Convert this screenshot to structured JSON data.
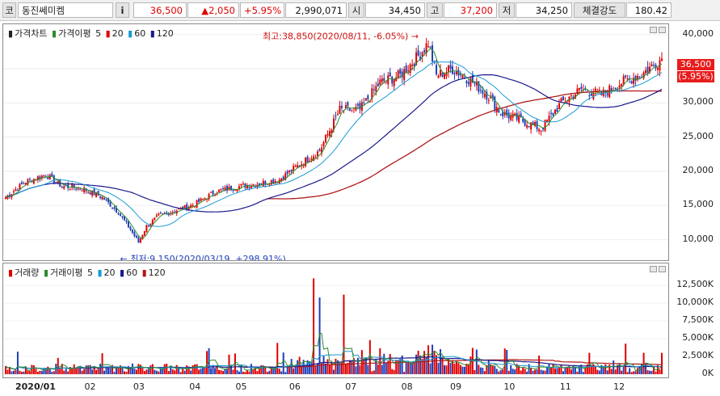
{
  "toolbar": {
    "market_code": "코",
    "stock_name": "동진쎄미켐",
    "info_button": "i",
    "price": "36,500",
    "change": "▲2,050",
    "change_pct": "+5.95%",
    "volume": "2,990,071",
    "open_label": "시",
    "open_value": "34,450",
    "high_label": "고",
    "high_value": "37,200",
    "low_label": "저",
    "low_value": "34,250",
    "strength_label": "체결강도",
    "strength_value": "180.42"
  },
  "price_pane": {
    "legend": {
      "title": "가격차트",
      "ma_title": "가격이평",
      "ma5": "5",
      "ma20": "20",
      "ma60": "60",
      "ma120": "120"
    },
    "annotations": {
      "high": "최고:38,850(2020/08/11, -6.05%)",
      "low": "최저:9,150(2020/03/19, +298.91%)"
    },
    "current_price": "36,500",
    "current_pct": "(5.95%)"
  },
  "volume_pane": {
    "legend": {
      "title": "거래량",
      "ma_title": "거래이평",
      "ma5": "5",
      "ma20": "20",
      "ma60": "60",
      "ma120": "120"
    }
  },
  "colors": {
    "up": "#e00000",
    "down": "#1f3fb8",
    "ma5": "#2e8b2e",
    "ma20": "#1a9ad6",
    "ma60": "#1a1a8c",
    "ma120": "#b01818"
  },
  "chart_data": [
    {
      "type": "candlestick",
      "title": "가격차트",
      "x_tick_labels": [
        "2020/01",
        "02",
        "03",
        "04",
        "05",
        "06",
        "07",
        "08",
        "09",
        "10",
        "11",
        "12"
      ],
      "y_tick_labels": [
        "10,000",
        "15,000",
        "20,000",
        "25,000",
        "30,000",
        "35,000",
        "40,000"
      ],
      "ylim": [
        7000,
        41500
      ],
      "high": {
        "value": 38850,
        "date": "2020/08/11"
      },
      "low": {
        "value": 9150,
        "date": "2020/03/19"
      },
      "last": 36500,
      "close_path": [
        [
          0,
          16200
        ],
        [
          10,
          18500
        ],
        [
          20,
          19500
        ],
        [
          28,
          17800
        ],
        [
          38,
          17500
        ],
        [
          48,
          16200
        ],
        [
          56,
          14000
        ],
        [
          62,
          11500
        ],
        [
          66,
          9600
        ],
        [
          70,
          12000
        ],
        [
          76,
          13500
        ],
        [
          84,
          14200
        ],
        [
          94,
          15200
        ],
        [
          104,
          17000
        ],
        [
          116,
          17800
        ],
        [
          126,
          18200
        ],
        [
          136,
          18800
        ],
        [
          146,
          21000
        ],
        [
          156,
          23000
        ],
        [
          166,
          29000
        ],
        [
          176,
          29000
        ],
        [
          186,
          33000
        ],
        [
          196,
          34000
        ],
        [
          206,
          37200
        ],
        [
          210,
          38800
        ],
        [
          214,
          34000
        ],
        [
          222,
          35000
        ],
        [
          230,
          33500
        ],
        [
          240,
          31000
        ],
        [
          246,
          28500
        ],
        [
          256,
          27500
        ],
        [
          266,
          26200
        ],
        [
          276,
          30000
        ],
        [
          286,
          32000
        ],
        [
          296,
          31200
        ],
        [
          306,
          33000
        ],
        [
          316,
          34200
        ],
        [
          326,
          36500
        ]
      ],
      "ma120_start_index": 130
    },
    {
      "type": "bar",
      "title": "거래량",
      "y_tick_labels": [
        "0K",
        "2,500K",
        "5,000K",
        "7,500K",
        "10,000K",
        "12,500K"
      ],
      "ylim": [
        0,
        14000
      ],
      "peaks": [
        {
          "index": 153,
          "value": 13500,
          "up": true
        },
        {
          "index": 156,
          "value": 10800,
          "up": false
        },
        {
          "index": 168,
          "value": 11200,
          "up": true
        },
        {
          "index": 135,
          "value": 4400,
          "up": true
        },
        {
          "index": 181,
          "value": 4800,
          "up": true
        },
        {
          "index": 205,
          "value": 3300,
          "up": true
        },
        {
          "index": 213,
          "value": 3300,
          "up": true
        },
        {
          "index": 232,
          "value": 3700,
          "up": true
        },
        {
          "index": 290,
          "value": 3000,
          "up": true
        },
        {
          "index": 308,
          "value": 4300,
          "up": true
        },
        {
          "index": 326,
          "value": 3000,
          "up": true
        }
      ]
    }
  ]
}
